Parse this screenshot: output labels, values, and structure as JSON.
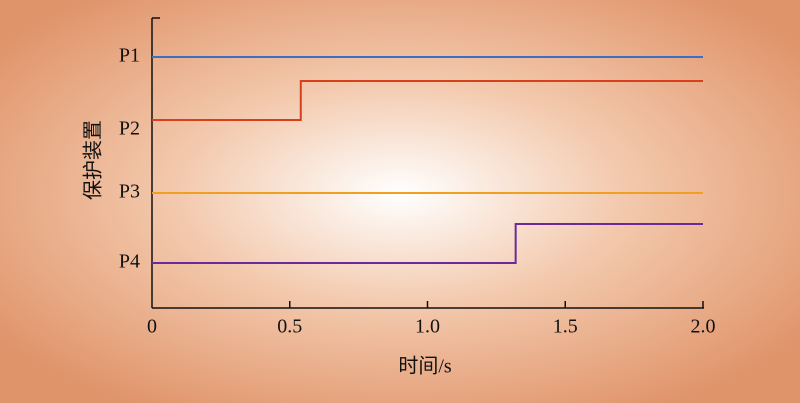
{
  "chart_data": {
    "type": "step",
    "xlabel": "时间/s",
    "ylabel": "保护装置",
    "categories": [
      "P1",
      "P2",
      "P3",
      "P4"
    ],
    "xlim": [
      0,
      2
    ],
    "xticks": [
      0,
      0.5,
      {
        "value": 1,
        "label": "1.0"
      },
      1.5,
      {
        "value": 2,
        "label": "2.0"
      }
    ],
    "series": [
      {
        "name": "P1",
        "color": "#3a6fc4",
        "x": [
          0,
          2
        ],
        "values": [
          0,
          0
        ]
      },
      {
        "name": "P2",
        "color": "#d8401c",
        "x": [
          0,
          0.54,
          0.54,
          2
        ],
        "values": [
          0,
          0,
          1,
          1
        ]
      },
      {
        "name": "P3",
        "color": "#f0a020",
        "x": [
          0,
          2
        ],
        "values": [
          0,
          0
        ]
      },
      {
        "name": "P4",
        "color": "#6a2a9a",
        "x": [
          0,
          1.32,
          1.32,
          2
        ],
        "values": [
          0,
          0,
          1,
          1
        ]
      }
    ]
  }
}
